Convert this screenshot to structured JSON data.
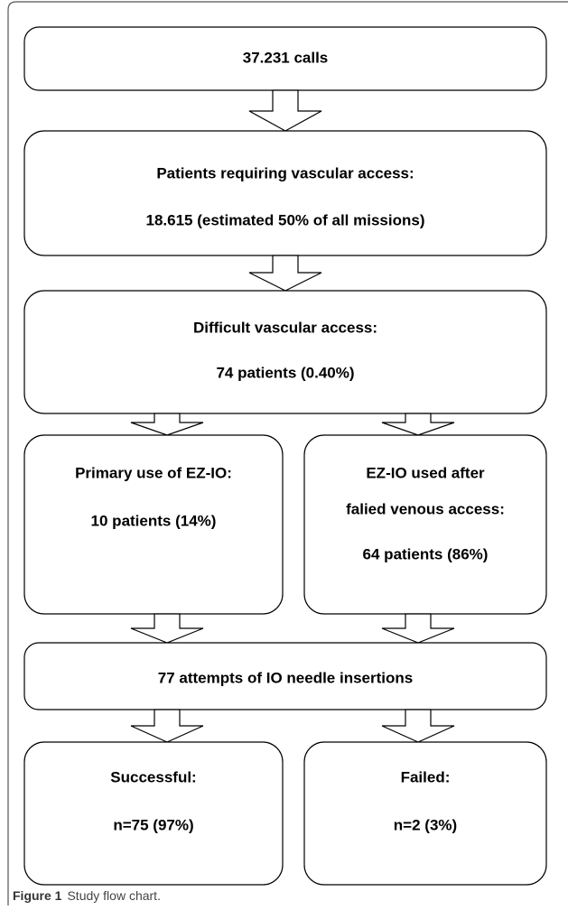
{
  "nodes": [
    {
      "lines": [
        "37.231 calls"
      ]
    },
    {
      "lines": [
        "Patients requiring vascular access:",
        "18.615 (estimated 50% of all missions)"
      ]
    },
    {
      "lines": [
        "Difficult vascular access:",
        "74 patients (0.40%)"
      ]
    },
    {
      "lines": [
        "Primary use of EZ-IO:",
        "10 patients (14%)"
      ]
    },
    {
      "lines": [
        "EZ-IO used after",
        "falied venous access:",
        "64 patients (86%)"
      ]
    },
    {
      "lines": [
        "77 attempts of IO needle insertions"
      ]
    },
    {
      "lines": [
        "Successful:",
        "n=75 (97%)"
      ]
    },
    {
      "lines": [
        "Failed:",
        "n=2 (3%)"
      ]
    }
  ],
  "caption": {
    "label": "Figure 1",
    "text": "Study flow chart."
  }
}
